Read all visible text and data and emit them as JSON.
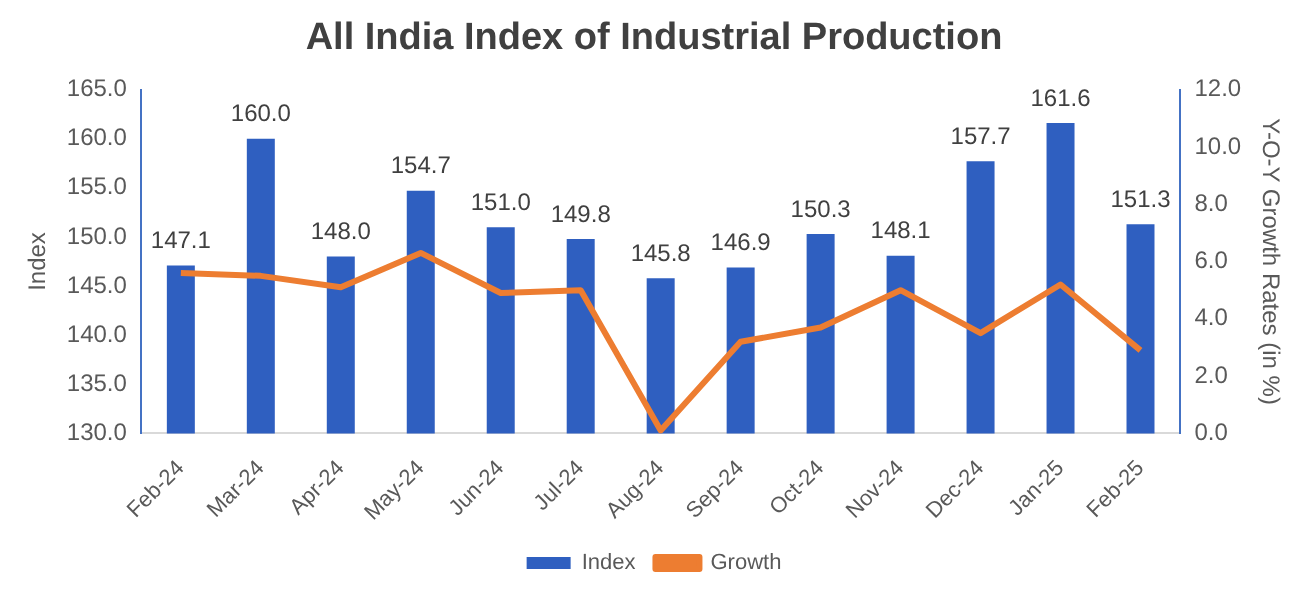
{
  "chart_data": {
    "type": "bar",
    "title": "All India Index of Industrial Production",
    "ylabel": "Index",
    "y2label": "Y-O-Y Growth Rates (in %)",
    "categories": [
      "Feb-24",
      "Mar-24",
      "Apr-24",
      "May-24",
      "Jun-24",
      "Jul-24",
      "Aug-24",
      "Sep-24",
      "Oct-24",
      "Nov-24",
      "Dec-24",
      "Jan-25",
      "Feb-25"
    ],
    "series": [
      {
        "name": "Index",
        "color": "#2f5fc0",
        "values": [
          147.1,
          160.0,
          148.0,
          154.7,
          151.0,
          149.8,
          145.8,
          146.9,
          150.3,
          148.1,
          157.7,
          161.6,
          151.3
        ],
        "value_labels": [
          "147.1",
          "160.0",
          "148.0",
          "154.7",
          "151.0",
          "149.8",
          "145.8",
          "146.9",
          "150.3",
          "148.1",
          "157.7",
          "161.6",
          "151.3"
        ]
      },
      {
        "name": "Growth",
        "type": "line",
        "axis": "y2",
        "color": "#ed7d31",
        "values": [
          5.6,
          5.5,
          5.1,
          6.3,
          4.9,
          5.0,
          0.1,
          3.2,
          3.7,
          5.0,
          3.5,
          5.2,
          2.9
        ]
      }
    ],
    "ylim": [
      130,
      165
    ],
    "yticks": [
      {
        "value": 130,
        "label": "130.0"
      },
      {
        "value": 135,
        "label": "135.0"
      },
      {
        "value": 140,
        "label": "140.0"
      },
      {
        "value": 145,
        "label": "145.0"
      },
      {
        "value": 150,
        "label": "150.0"
      },
      {
        "value": 155,
        "label": "155.0"
      },
      {
        "value": 160,
        "label": "160.0"
      },
      {
        "value": 165,
        "label": "165.0"
      }
    ],
    "y2lim": [
      0,
      12
    ],
    "y2ticks": [
      {
        "value": 0,
        "label": "0.0"
      },
      {
        "value": 2,
        "label": "2.0"
      },
      {
        "value": 4,
        "label": "4.0"
      },
      {
        "value": 6,
        "label": "6.0"
      },
      {
        "value": 8,
        "label": "8.0"
      },
      {
        "value": 10,
        "label": "10.0"
      },
      {
        "value": 12,
        "label": "12.0"
      }
    ],
    "grid": false,
    "legend": "bottom",
    "marker": "none",
    "line_style": "solid"
  }
}
